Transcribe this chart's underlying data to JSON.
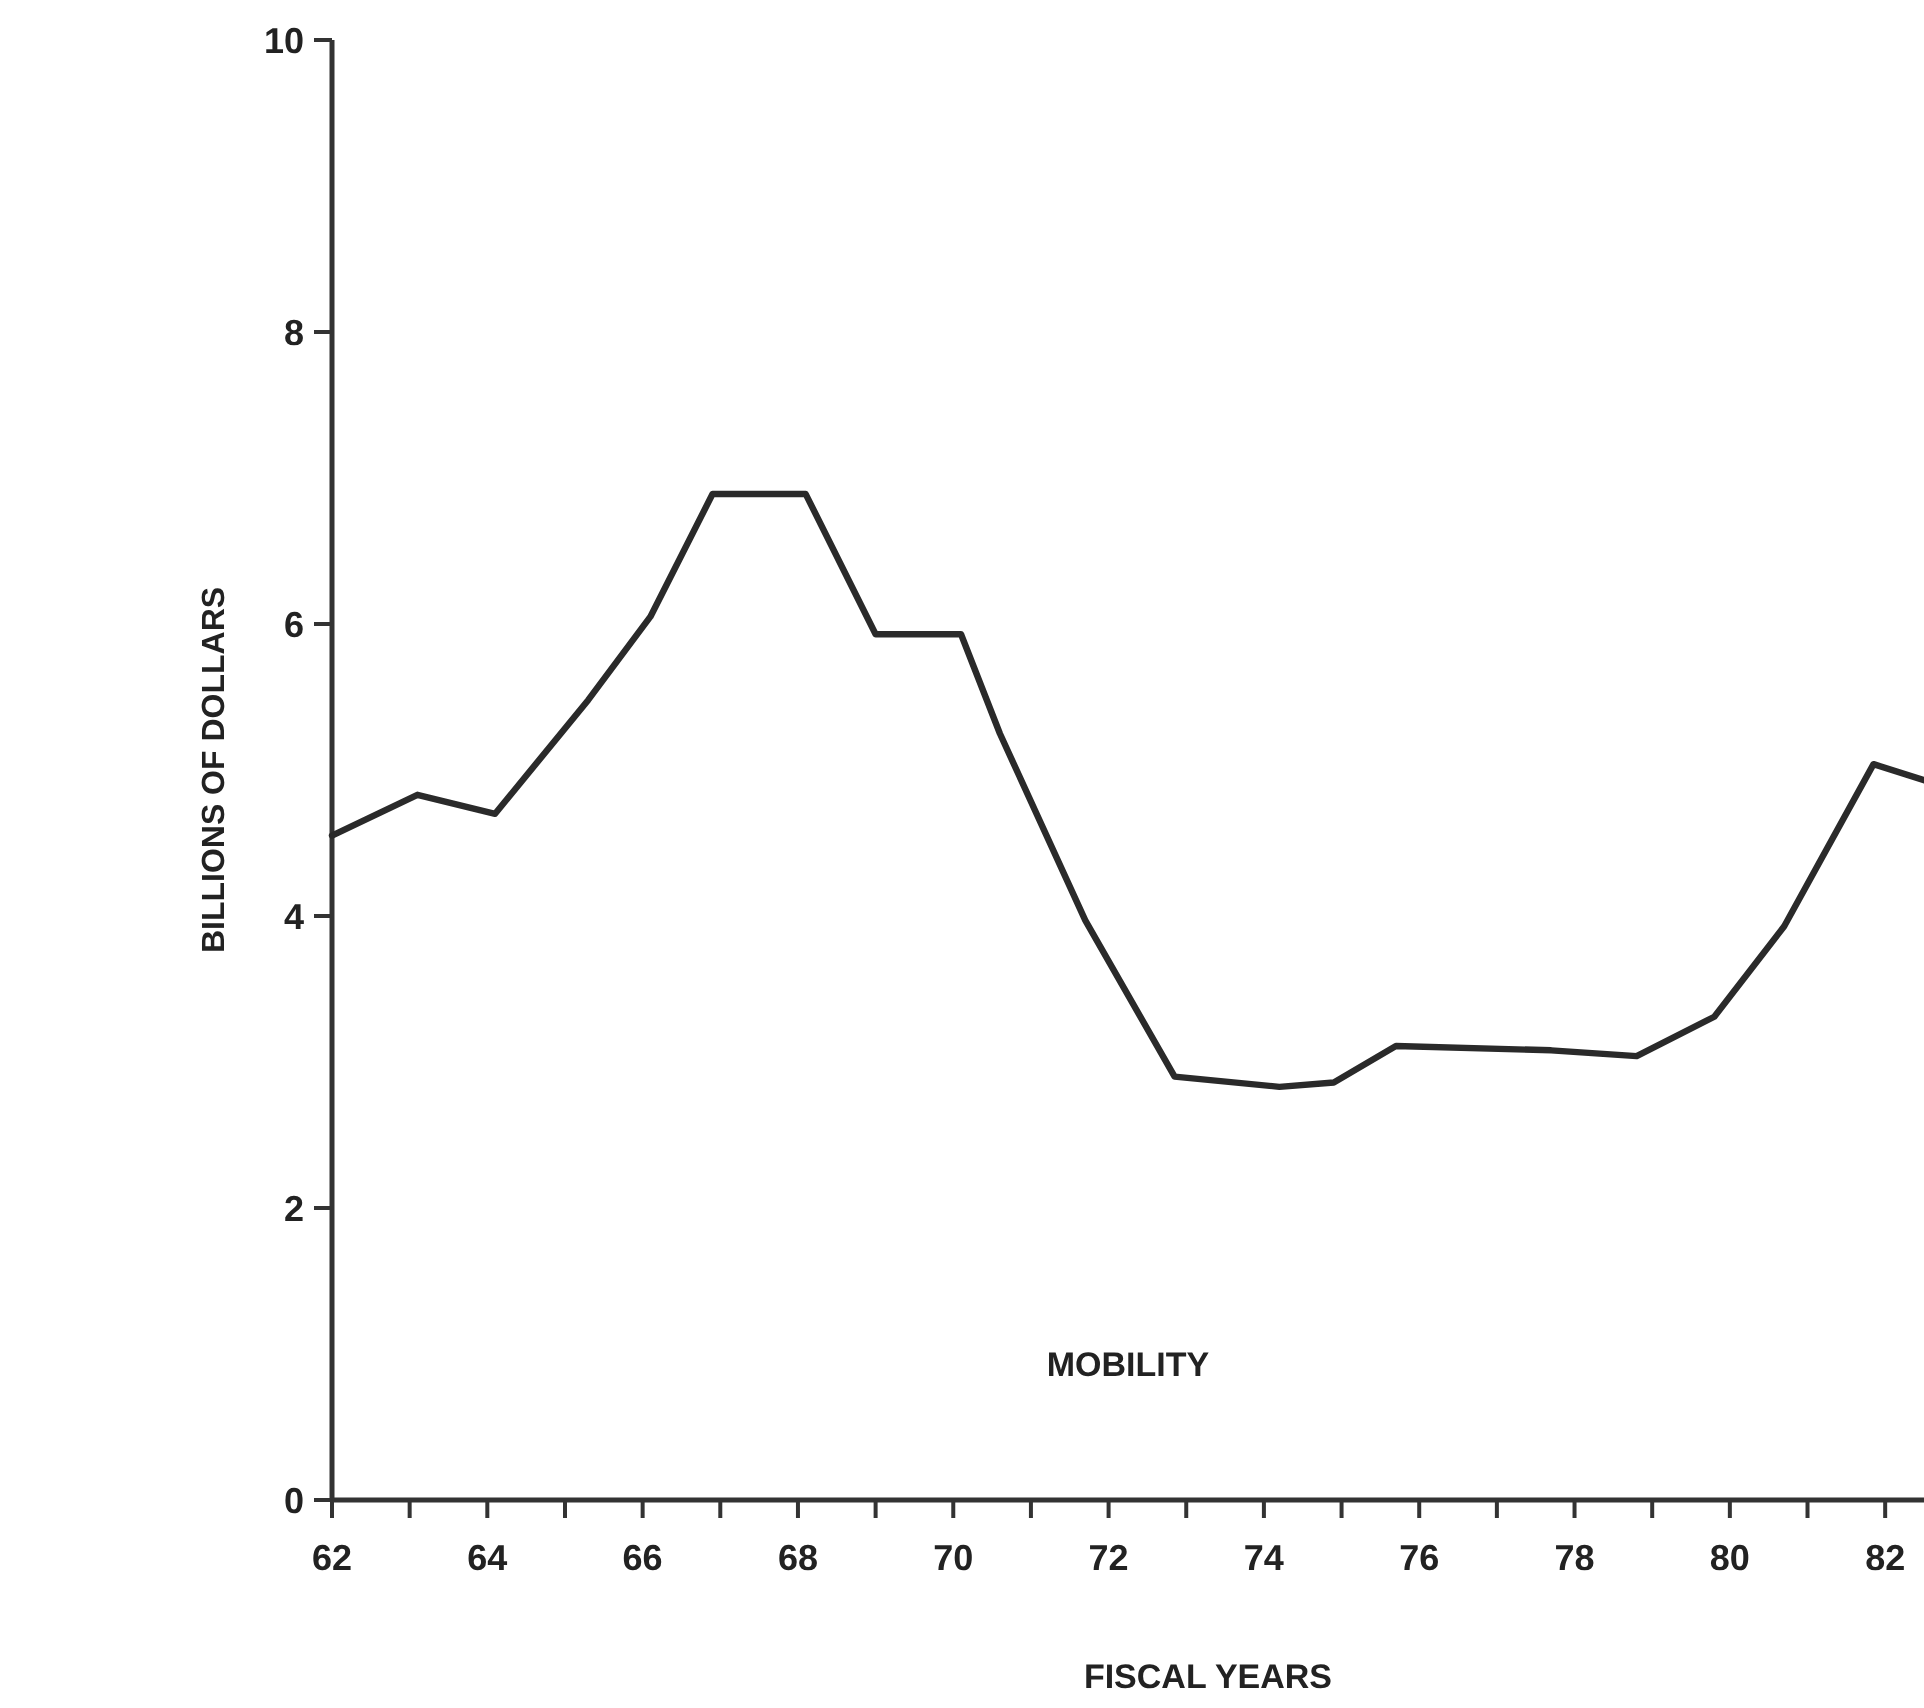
{
  "chart_data": {
    "type": "line",
    "xlabel": "FISCAL YEARS",
    "ylabel": "BILLIONS OF DOLLARS",
    "xlim": [
      62,
      82.5
    ],
    "ylim": [
      0,
      10
    ],
    "xticks": [
      62,
      {
        "value": 63,
        "label": null
      },
      64,
      {
        "value": 65,
        "label": null
      },
      66,
      {
        "value": 67,
        "label": null
      },
      68,
      {
        "value": 69,
        "label": null
      },
      70,
      {
        "value": 71,
        "label": null
      },
      72,
      {
        "value": 73,
        "label": null
      },
      74,
      {
        "value": 75,
        "label": null
      },
      76,
      {
        "value": 77,
        "label": null
      },
      78,
      {
        "value": 79,
        "label": null
      },
      80,
      {
        "value": 81,
        "label": null
      },
      82
    ],
    "yticks": [
      0,
      2,
      4,
      6,
      8,
      10
    ],
    "series": [
      {
        "name": "MOBILITY",
        "color": "#2a2a2a",
        "x": [
          62,
          63.1,
          64.1,
          65.3,
          66.1,
          66.9,
          68.1,
          69,
          70.1,
          70.6,
          71.7,
          72.85,
          74.2,
          74.9,
          75.7,
          77.7,
          78.8,
          79.8,
          80.7,
          81.85,
          82.5
        ],
        "values": [
          4.55,
          4.83,
          4.7,
          5.48,
          6.05,
          6.89,
          6.89,
          5.93,
          5.93,
          5.25,
          3.97,
          2.9,
          2.83,
          2.86,
          3.11,
          3.08,
          3.04,
          3.31,
          3.93,
          5.04,
          4.93
        ]
      }
    ],
    "grid": false,
    "legend": false,
    "marker": "none",
    "line_style": "solid"
  }
}
